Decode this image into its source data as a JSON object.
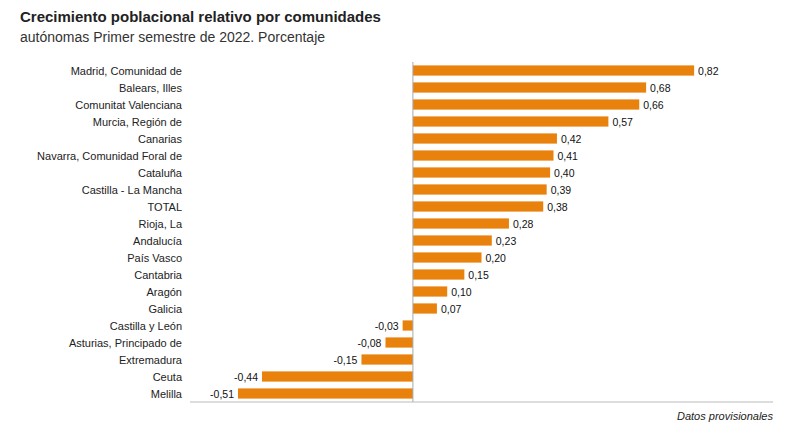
{
  "chart_data": {
    "type": "bar",
    "orientation": "horizontal",
    "title": "Crecimiento poblacional relativo por comunidades",
    "subtitle": "autónomas Primer semestre de 2022. Porcentaje",
    "annotation": "Datos provisionales",
    "categories": [
      "Madrid, Comunidad de",
      "Balears, Illes",
      "Comunitat Valenciana",
      "Murcia, Región de",
      "Canarias",
      "Navarra, Comunidad Foral de",
      "Cataluña",
      "Castilla - La Mancha",
      "TOTAL",
      "Rioja, La",
      "Andalucía",
      "País Vasco",
      "Cantabria",
      "Aragón",
      "Galicia",
      "Castilla y León",
      "Asturias, Principado de",
      "Extremadura",
      "Ceuta",
      "Melilla"
    ],
    "values": [
      0.82,
      0.68,
      0.66,
      0.57,
      0.42,
      0.41,
      0.4,
      0.39,
      0.38,
      0.28,
      0.23,
      0.2,
      0.15,
      0.1,
      0.07,
      -0.03,
      -0.08,
      -0.15,
      -0.44,
      -0.51
    ],
    "value_labels": [
      "0,82",
      "0,68",
      "0,66",
      "0,57",
      "0,42",
      "0,41",
      "0,40",
      "0,39",
      "0,38",
      "0,28",
      "0,23",
      "0,20",
      "0,15",
      "0,10",
      "0,07",
      "-0,03",
      "-0,08",
      "-0,15",
      "-0,44",
      "-0,51"
    ],
    "data_labels": true,
    "color": "#E8820C",
    "xlim": [
      -0.65,
      1.05
    ],
    "xticks": [],
    "grid": false,
    "tick_labels": "y"
  }
}
